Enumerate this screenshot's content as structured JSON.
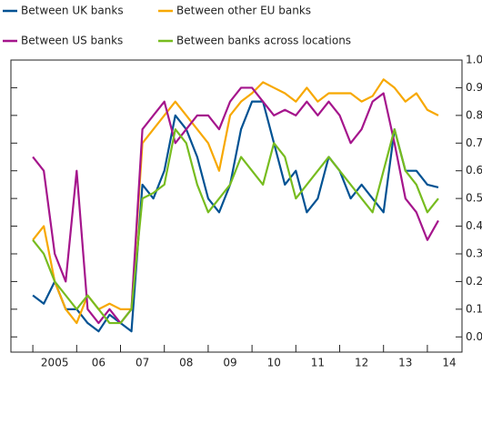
{
  "chart_data": {
    "type": "line",
    "x": [
      2005,
      2005.25,
      2005.5,
      2005.75,
      2006,
      2006.25,
      2006.5,
      2006.75,
      2007,
      2007.25,
      2007.5,
      2007.75,
      2008,
      2008.25,
      2008.5,
      2008.75,
      2009,
      2009.25,
      2009.5,
      2009.75,
      2010,
      2010.25,
      2010.5,
      2010.75,
      2011,
      2011.25,
      2011.5,
      2011.75,
      2012,
      2012.25,
      2012.5,
      2012.75,
      2013,
      2013.25,
      2013.5,
      2013.75,
      2014,
      2014.25
    ],
    "series": [
      {
        "name": "Between UK banks",
        "color": "#005293",
        "values": [
          0.15,
          0.12,
          0.2,
          0.1,
          0.1,
          0.05,
          0.02,
          0.08,
          0.05,
          0.02,
          0.55,
          0.5,
          0.6,
          0.8,
          0.75,
          0.65,
          0.5,
          0.45,
          0.55,
          0.75,
          0.85,
          0.85,
          0.7,
          0.55,
          0.6,
          0.45,
          0.5,
          0.65,
          0.6,
          0.5,
          0.55,
          0.5,
          0.45,
          0.75,
          0.6,
          0.6,
          0.55,
          0.54
        ]
      },
      {
        "name": "Between other EU banks",
        "color": "#f7a800",
        "values": [
          0.35,
          0.4,
          0.2,
          0.1,
          0.05,
          0.15,
          0.1,
          0.12,
          0.1,
          0.1,
          0.7,
          0.75,
          0.8,
          0.85,
          0.8,
          0.75,
          0.7,
          0.6,
          0.8,
          0.85,
          0.88,
          0.92,
          0.9,
          0.88,
          0.85,
          0.9,
          0.85,
          0.88,
          0.88,
          0.88,
          0.85,
          0.87,
          0.93,
          0.9,
          0.85,
          0.88,
          0.82,
          0.8
        ]
      },
      {
        "name": "Between US banks",
        "color": "#a5158c",
        "values": [
          0.65,
          0.6,
          0.3,
          0.2,
          0.6,
          0.1,
          0.05,
          0.1,
          0.05,
          0.1,
          0.75,
          0.8,
          0.85,
          0.7,
          0.75,
          0.8,
          0.8,
          0.75,
          0.85,
          0.9,
          0.9,
          0.85,
          0.8,
          0.82,
          0.8,
          0.85,
          0.8,
          0.85,
          0.8,
          0.7,
          0.75,
          0.85,
          0.88,
          0.7,
          0.5,
          0.45,
          0.35,
          0.42
        ]
      },
      {
        "name": "Between banks across locations",
        "color": "#77bc1f",
        "values": [
          0.35,
          0.3,
          0.2,
          0.15,
          0.1,
          0.15,
          0.1,
          0.05,
          0.05,
          0.1,
          0.5,
          0.52,
          0.55,
          0.75,
          0.7,
          0.55,
          0.45,
          0.5,
          0.55,
          0.65,
          0.6,
          0.55,
          0.7,
          0.65,
          0.5,
          0.55,
          0.6,
          0.65,
          0.6,
          0.55,
          0.5,
          0.45,
          0.6,
          0.75,
          0.6,
          0.55,
          0.45,
          0.5
        ]
      }
    ],
    "xlim": [
      2004.5,
      2014.79
    ],
    "xticks": [
      {
        "value": 2005,
        "label": "2005"
      },
      {
        "value": 2006,
        "label": "06"
      },
      {
        "value": 2007,
        "label": "07"
      },
      {
        "value": 2008,
        "label": "08"
      },
      {
        "value": 2009,
        "label": "09"
      },
      {
        "value": 2010,
        "label": "10"
      },
      {
        "value": 2011,
        "label": "11"
      },
      {
        "value": 2012,
        "label": "12"
      },
      {
        "value": 2013,
        "label": "13"
      },
      {
        "value": 2014,
        "label": "14"
      }
    ],
    "ylim": [
      -0.055,
      1.0
    ],
    "yticks": [
      {
        "value": 0,
        "label": "0.0"
      },
      0.1,
      0.2,
      0.3,
      0.4,
      0.5,
      0.6,
      0.7,
      0.8,
      0.9,
      {
        "value": 1,
        "label": "1.0"
      }
    ],
    "grid": false
  }
}
